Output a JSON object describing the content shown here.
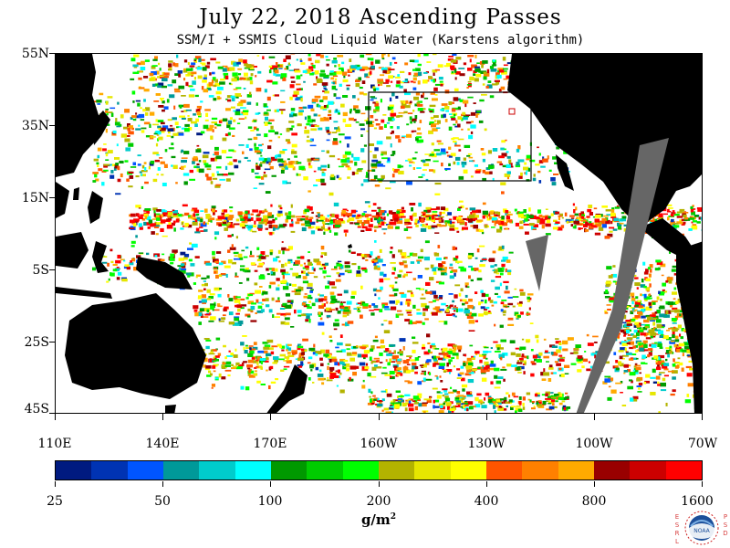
{
  "header": {
    "title": "July 22, 2018  Ascending Passes",
    "subtitle": "SSM/I + SSMIS Cloud Liquid Water (Karstens algorithm)"
  },
  "map": {
    "latitude_labels": [
      "55N",
      "35N",
      "15N",
      "5S",
      "25S",
      "45S"
    ],
    "longitude_labels": [
      "110E",
      "140E",
      "170E",
      "160W",
      "130W",
      "100W",
      "70W"
    ],
    "land_color": "#000000",
    "no_data_color": "#666666",
    "ocean_no_cloud_color": "#ffffff",
    "highlight_box_color": "#000000"
  },
  "colorbar": {
    "colors": [
      "#001a80",
      "#0033b3",
      "#0055ff",
      "#009999",
      "#00cccc",
      "#00ffff",
      "#009900",
      "#00cc00",
      "#00ff00",
      "#b3b300",
      "#e6e600",
      "#ffff00",
      "#ff5500",
      "#ff8000",
      "#ffaa00",
      "#990000",
      "#cc0000",
      "#ff0000"
    ],
    "labels": [
      "25",
      "50",
      "100",
      "200",
      "400",
      "800",
      "1600"
    ],
    "units": "g/m",
    "units_exponent": "2"
  },
  "logo": {
    "left_letters": [
      "E",
      "S",
      "R",
      "L"
    ],
    "right_letters": [
      "P",
      "S",
      "D"
    ],
    "center_text": "NOAA"
  }
}
